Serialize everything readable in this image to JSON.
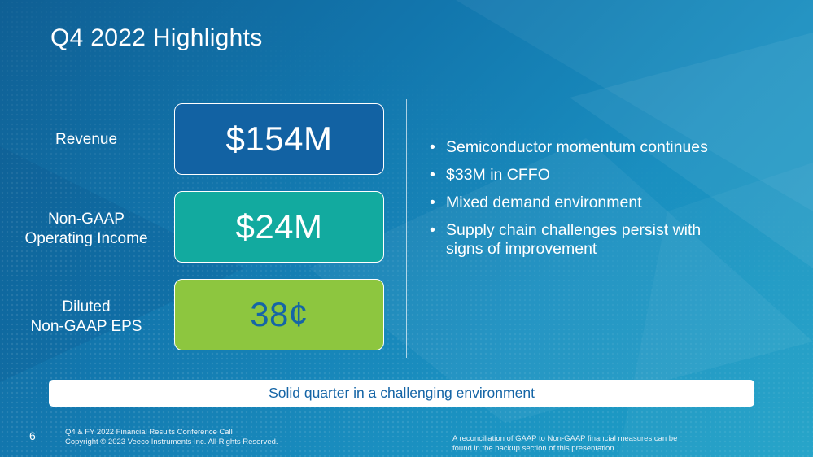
{
  "slide": {
    "title": "Q4 2022 Highlights"
  },
  "metrics": [
    {
      "label_lines": [
        "Revenue"
      ],
      "value": "$154M",
      "color": "#1262a3",
      "text_color": "#ffffff"
    },
    {
      "label_lines": [
        "Non-GAAP",
        "Operating Income"
      ],
      "value": "$24M",
      "color": "#12aa9f",
      "text_color": "#ffffff"
    },
    {
      "label_lines": [
        "Diluted",
        "Non-GAAP EPS"
      ],
      "value": "38¢",
      "color": "#8dc63f",
      "text_color": "#1565a6"
    }
  ],
  "bullets": [
    [
      "Semiconductor momentum continues"
    ],
    [
      "$33M in CFFO"
    ],
    [
      "Mixed demand environment"
    ],
    [
      "Supply chain challenges persist with",
      "signs of improvement"
    ]
  ],
  "bullet_glyph": "•",
  "banner": {
    "text": "Solid quarter in a challenging environment"
  },
  "footer": {
    "page_number": "6",
    "left_line1": "Q4 & FY 2022 Financial Results Conference Call",
    "left_line2": "Copyright © 2023 Veeco Instruments Inc. All Rights Reserved.",
    "right_line1": "A reconciliation of GAAP to Non-GAAP financial measures can be",
    "right_line2": "found in the backup section of this presentation."
  }
}
